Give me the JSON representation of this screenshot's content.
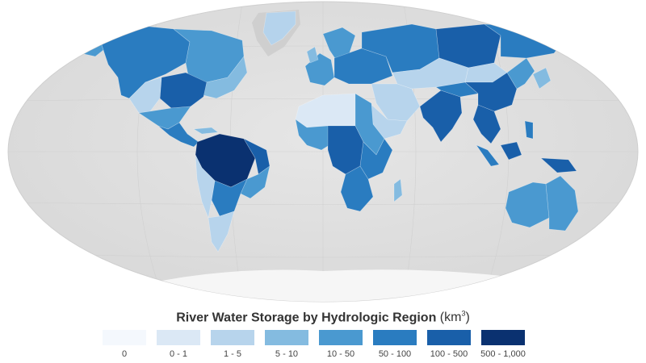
{
  "legend": {
    "title": "River Water Storage by Hydrologic Region",
    "unit_prefix": "(km",
    "unit_exponent": "3",
    "unit_suffix": ")",
    "bins": [
      {
        "label": "0",
        "color": "#f4f8fd"
      },
      {
        "label": "0 - 1",
        "color": "#dbe8f5"
      },
      {
        "label": "1 - 5",
        "color": "#b7d4ec"
      },
      {
        "label": "5 - 10",
        "color": "#84bbe0"
      },
      {
        "label": "10 - 50",
        "color": "#4a99d0"
      },
      {
        "label": "50 - 100",
        "color": "#2a7cc0"
      },
      {
        "label": "100 - 500",
        "color": "#195fa9"
      },
      {
        "label": "500 - 1,000",
        "color": "#0a3170"
      }
    ]
  },
  "map": {
    "background_land_color": "#d3d3d3",
    "ocean_color": "#e2e2e2",
    "antarctica_color": "#f6f6f6"
  }
}
